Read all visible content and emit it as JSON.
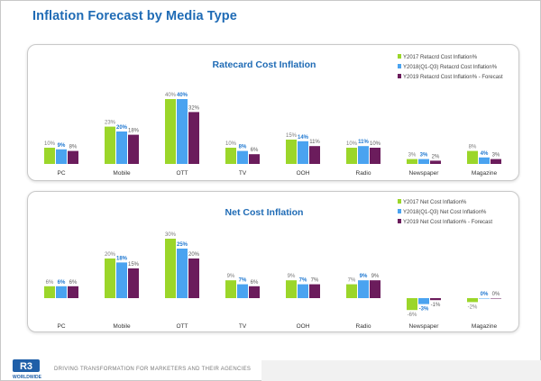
{
  "page": {
    "title": "Inflation Forecast by Media Type",
    "footer": "DRIVING TRANSFORMATION FOR MARKETERS AND THEIR AGENCIES",
    "logo": {
      "mark": "R3",
      "word": "WORLDWIDE"
    }
  },
  "colors": {
    "series": [
      "#9bd62a",
      "#4aa3f0",
      "#6b1c5c"
    ],
    "title": "#1f6bb5",
    "label_highlight": "#1f78d1"
  },
  "chart_data": [
    {
      "type": "bar",
      "title": "Ratecard Cost Inflation",
      "categories": [
        "PC",
        "Mobile",
        "OTT",
        "TV",
        "OOH",
        "Radio",
        "Newspaper",
        "Magazine"
      ],
      "series": [
        {
          "name": "Y2017 Retacrd Cost Inflation%",
          "values": [
            10,
            23,
            40,
            10,
            15,
            10,
            3,
            8
          ],
          "labels": [
            "10%",
            "23%",
            "40%",
            "10%",
            "15%",
            "10%",
            "3%",
            "8%"
          ]
        },
        {
          "name": "Y2018(Q1-Q3) Retacrd Cost Inflation%",
          "values": [
            9,
            20,
            40,
            8,
            14,
            11,
            3,
            4
          ],
          "labels": [
            "9%",
            "20%",
            "40%",
            "8%",
            "14%",
            "11%",
            "3%",
            "4%"
          ]
        },
        {
          "name": "Y2019 Retacrd Cost Inflation% - Forecast",
          "values": [
            8,
            18,
            32,
            6,
            11,
            10,
            2,
            3
          ],
          "labels": [
            "8%",
            "18%",
            "32%",
            "6%",
            "11%",
            "10%",
            "2%",
            "3%"
          ]
        }
      ],
      "ylim": [
        0,
        40
      ],
      "legend": "top-right"
    },
    {
      "type": "bar",
      "title": "Net Cost Inflation",
      "categories": [
        "PC",
        "Mobile",
        "OTT",
        "TV",
        "OOH",
        "Radio",
        "Newspaper",
        "Magazine"
      ],
      "series": [
        {
          "name": "Y2017 Net Cost Inflation%",
          "values": [
            6,
            20,
            30,
            9,
            9,
            7,
            -6,
            -2
          ],
          "labels": [
            "6%",
            "20%",
            "30%",
            "9%",
            "9%",
            "7%",
            "-6%",
            "-2%"
          ]
        },
        {
          "name": "Y2018(Q1-Q3) Net Cost Inflation%",
          "values": [
            6,
            18,
            25,
            7,
            7,
            9,
            -3,
            0
          ],
          "labels": [
            "6%",
            "18%",
            "25%",
            "7%",
            "7%",
            "9%",
            "-3%",
            "0%"
          ]
        },
        {
          "name": "Y2019 Net Cost Inflation% - Forecast",
          "values": [
            6,
            15,
            20,
            6,
            7,
            9,
            -1,
            0
          ],
          "labels": [
            "6%",
            "15%",
            "20%",
            "6%",
            "7%",
            "9%",
            "-1%",
            "0%"
          ]
        }
      ],
      "ylim": [
        -6,
        30
      ],
      "legend": "top-right"
    }
  ]
}
